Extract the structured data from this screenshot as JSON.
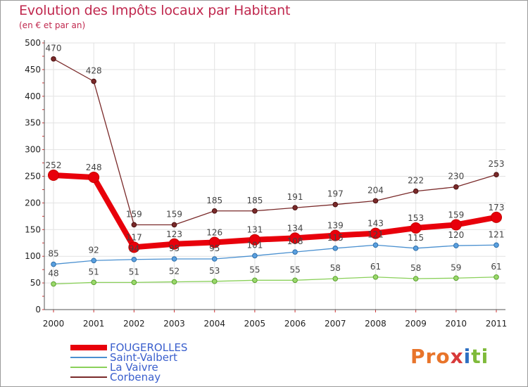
{
  "header": {
    "title": "Evolution des Impôts locaux par Habitant",
    "subtitle": "(en € et par an)"
  },
  "logo": {
    "parts": [
      "Pro",
      "x",
      "i",
      "ti"
    ]
  },
  "chart_data": {
    "type": "line",
    "title": "Evolution des Impôts locaux par Habitant",
    "subtitle": "(en € et par an)",
    "xlabel": "",
    "ylabel": "",
    "ylim": [
      0,
      500
    ],
    "yticks": [
      0,
      50,
      100,
      150,
      200,
      250,
      300,
      350,
      400,
      450,
      500
    ],
    "grid": true,
    "legend_position": "bottom-left",
    "categories": [
      "2000",
      "2001",
      "2002",
      "2003",
      "2004",
      "2005",
      "2006",
      "2007",
      "2008",
      "2009",
      "2010",
      "2011"
    ],
    "series": [
      {
        "name": "FOUGEROLLES",
        "color": "#e8000b",
        "values": [
          252,
          248,
          117,
          123,
          126,
          131,
          134,
          139,
          143,
          153,
          159,
          173
        ],
        "labels": [
          "252",
          "248",
          "117",
          "123",
          "126",
          "131",
          "134",
          "139",
          "143",
          "153",
          "159",
          "173"
        ]
      },
      {
        "name": "Saint-Valbert",
        "color": "#4a90d0",
        "values": [
          85,
          92,
          94,
          95,
          95,
          101,
          108,
          115,
          121,
          115,
          120,
          121
        ],
        "labels": [
          "85",
          "92",
          "94",
          "95",
          "95",
          "101",
          "108",
          "115",
          "121",
          "115",
          "120",
          "121"
        ]
      },
      {
        "name": "La Vaivre",
        "color": "#8ad05a",
        "values": [
          48,
          51,
          51,
          52,
          53,
          55,
          55,
          58,
          61,
          58,
          59,
          61
        ],
        "labels": [
          "48",
          "51",
          "51",
          "52",
          "53",
          "55",
          "55",
          "58",
          "61",
          "58",
          "59",
          "61"
        ]
      },
      {
        "name": "Corbenay",
        "color": "#7a2a2a",
        "values": [
          470,
          428,
          159,
          159,
          185,
          185,
          191,
          197,
          204,
          222,
          230,
          253
        ],
        "labels": [
          "470",
          "428",
          "159",
          "159",
          "185",
          "185",
          "191",
          "197",
          "204",
          "222",
          "230",
          "253"
        ]
      }
    ]
  }
}
